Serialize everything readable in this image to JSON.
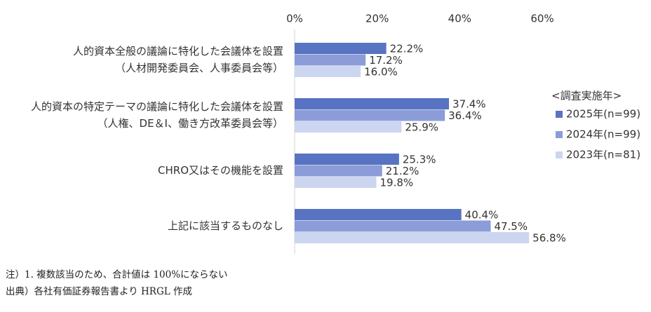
{
  "chart_data": {
    "type": "bar",
    "orientation": "horizontal",
    "categories": [
      [
        "人的資本全般の議論に特化した会議体を設置",
        "（人材開発委員会、人事委員会等）"
      ],
      [
        "人的資本の特定テーマの議論に特化した会議体を設置",
        "（人権、DE＆I、働き方改革委員会等）"
      ],
      [
        "CHRO又はその機能を設置"
      ],
      [
        "上記に該当するものなし"
      ]
    ],
    "series": [
      {
        "name": "2025年(n=99)",
        "color": "#5873c1",
        "values": [
          22.2,
          37.4,
          25.3,
          40.4
        ],
        "labels": [
          "22.2%",
          "37.4%",
          "25.3%",
          "40.4%"
        ]
      },
      {
        "name": "2024年(n=99)",
        "color": "#8b9cd8",
        "values": [
          17.2,
          36.4,
          21.2,
          47.5
        ],
        "labels": [
          "17.2%",
          "36.4%",
          "21.2%",
          "47.5%"
        ]
      },
      {
        "name": "2023年(n=81)",
        "color": "#cdd6f0",
        "values": [
          16.0,
          25.9,
          19.8,
          56.8
        ],
        "labels": [
          "16.0%",
          "25.9%",
          "19.8%",
          "56.8%"
        ]
      }
    ],
    "xlim": [
      0,
      60
    ],
    "ticks": [
      0,
      20,
      40,
      60
    ],
    "tick_labels": [
      "0%",
      "20%",
      "40%",
      "60%"
    ],
    "axis_position": "top",
    "grid": false,
    "legend": {
      "title": "<調査実施年>",
      "placement": "right",
      "marker": "square"
    }
  },
  "notes": [
    "注）1. 複数該当のため、合計値は 100%にならない",
    "出典）各社有価証券報告書より HRGL 作成"
  ]
}
